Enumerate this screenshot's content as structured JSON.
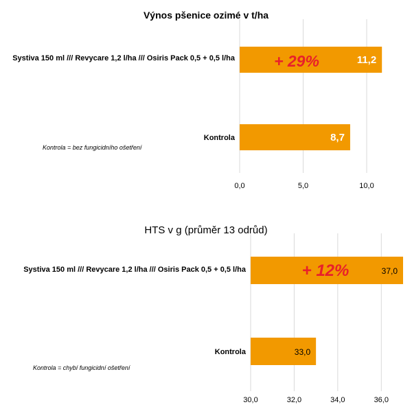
{
  "colors": {
    "bar": "#f29900",
    "grid": "#d9d9d9",
    "annotation": "#e8202a"
  },
  "chart_data": [
    {
      "type": "bar",
      "orientation": "horizontal",
      "title": "Výnos pšenice ozimé v t/ha",
      "categories": [
        "Systiva 150 ml /// Revycare 1,2 l/ha /// Osiris Pack 0,5 + 0,5 l/ha",
        "Kontrola"
      ],
      "values": [
        11.2,
        8.7
      ],
      "value_labels": [
        "11,2",
        "8,7"
      ],
      "xlim": [
        0,
        12
      ],
      "ticks": [
        0,
        5,
        10
      ],
      "tick_labels": [
        "0,0",
        "5,0",
        "10,0"
      ],
      "grid": true,
      "annotation": "+ 29%",
      "note": "Kontrola = bez fungicidního ošetření"
    },
    {
      "type": "bar",
      "orientation": "horizontal",
      "title": "HTS v g (průměr 13 odrůd)",
      "categories": [
        "Systiva 150 ml /// Revycare 1,2 l/ha /// Osiris Pack 0,5 + 0,5 l/ha",
        "Kontrola"
      ],
      "values": [
        37.0,
        33.0
      ],
      "value_labels": [
        "37,0",
        "33,0"
      ],
      "xlim": [
        30,
        37
      ],
      "ticks": [
        30,
        32,
        34,
        36
      ],
      "tick_labels": [
        "30,0",
        "32,0",
        "34,0",
        "36,0"
      ],
      "grid": true,
      "annotation": "+ 12%",
      "note": "Kontrola = chybí fungicidní ošetření"
    }
  ]
}
